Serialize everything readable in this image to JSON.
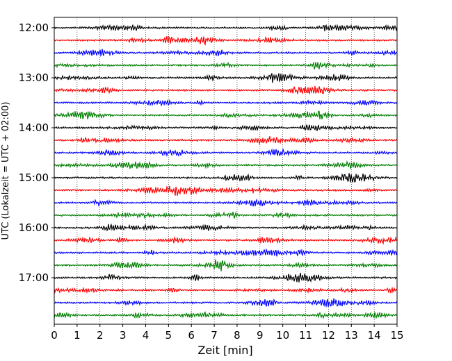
{
  "chart_data": {
    "type": "line",
    "title": "",
    "xlabel": "Zeit  [min]",
    "ylabel": "UTC (Lokalzeit = UTC + 02:00)",
    "xlim": [
      0,
      15
    ],
    "x_ticks": [
      "0",
      "1",
      "2",
      "3",
      "4",
      "5",
      "6",
      "7",
      "8",
      "9",
      "10",
      "11",
      "12",
      "13",
      "14",
      "15"
    ],
    "y_ticks": [
      "12:00",
      "13:00",
      "14:00",
      "15:00",
      "16:00",
      "17:00"
    ],
    "grid": "vertical dotted lines at each minute",
    "trace_interval_min": 15,
    "trace_colors": [
      "#000000",
      "#ff0000",
      "#0000ff",
      "#007f00"
    ],
    "traces": [
      {
        "start": "12:00",
        "color": "#000000"
      },
      {
        "start": "12:15",
        "color": "#ff0000"
      },
      {
        "start": "12:30",
        "color": "#0000ff"
      },
      {
        "start": "12:45",
        "color": "#007f00"
      },
      {
        "start": "13:00",
        "color": "#000000"
      },
      {
        "start": "13:15",
        "color": "#ff0000"
      },
      {
        "start": "13:30",
        "color": "#0000ff"
      },
      {
        "start": "13:45",
        "color": "#007f00"
      },
      {
        "start": "14:00",
        "color": "#000000"
      },
      {
        "start": "14:15",
        "color": "#ff0000"
      },
      {
        "start": "14:30",
        "color": "#0000ff"
      },
      {
        "start": "14:45",
        "color": "#007f00"
      },
      {
        "start": "15:00",
        "color": "#000000"
      },
      {
        "start": "15:15",
        "color": "#ff0000"
      },
      {
        "start": "15:30",
        "color": "#0000ff"
      },
      {
        "start": "15:45",
        "color": "#007f00"
      },
      {
        "start": "16:00",
        "color": "#000000"
      },
      {
        "start": "16:15",
        "color": "#ff0000"
      },
      {
        "start": "16:30",
        "color": "#0000ff"
      },
      {
        "start": "16:45",
        "color": "#007f00"
      },
      {
        "start": "17:00",
        "color": "#000000"
      },
      {
        "start": "17:15",
        "color": "#ff0000"
      },
      {
        "start": "17:30",
        "color": "#0000ff"
      },
      {
        "start": "17:45",
        "color": "#007f00"
      }
    ]
  }
}
